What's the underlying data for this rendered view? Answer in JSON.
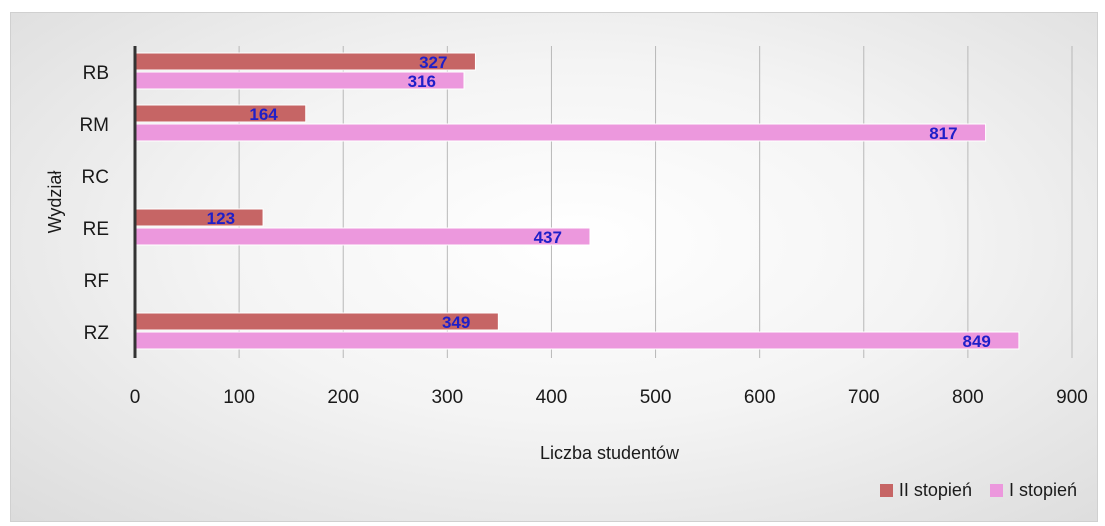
{
  "chart_data": {
    "type": "bar",
    "orientation": "horizontal",
    "categories": [
      "RB",
      "RM",
      "RC",
      "RE",
      "RF",
      "RZ"
    ],
    "series": [
      {
        "name": "II stopień",
        "values": [
          327,
          164,
          null,
          123,
          null,
          349
        ],
        "color": "#c66565"
      },
      {
        "name": "I stopień",
        "values": [
          316,
          817,
          null,
          437,
          null,
          849
        ],
        "color": "#ec98dd"
      }
    ],
    "xlabel": "Liczba studentów",
    "ylabel": "Wydział",
    "xlim": [
      0,
      900
    ],
    "xticks": [
      "0",
      "100",
      "200",
      "300",
      "400",
      "500",
      "600",
      "700",
      "800",
      "900"
    ],
    "grid": true,
    "legend_position": "bottom-right",
    "data_label_color": "#1f1fc8"
  }
}
